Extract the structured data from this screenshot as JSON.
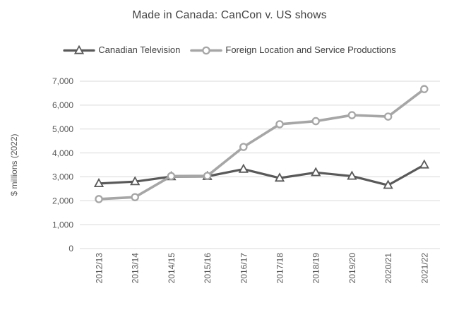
{
  "title": "Made in Canada: CanCon v. US shows",
  "legend": {
    "position": "top",
    "items": [
      {
        "label": "Canadian Television",
        "marker": "triangle",
        "color": "#595959"
      },
      {
        "label": "Foreign Location and Service Productions",
        "marker": "circle",
        "color": "#A6A6A6"
      }
    ]
  },
  "chart_data": {
    "type": "line",
    "title": "Made in Canada: CanCon v. US shows",
    "categories": [
      "2012/13",
      "2013/14",
      "2014/15",
      "2015/16",
      "2016/17",
      "2017/18",
      "2018/19",
      "2019/20",
      "2020/21",
      "2021/22"
    ],
    "series": [
      {
        "name": "Canadian Television",
        "marker": "triangle",
        "color": "#595959",
        "values": [
          2720,
          2800,
          3010,
          3020,
          3320,
          2950,
          3180,
          3030,
          2650,
          3500
        ]
      },
      {
        "name": "Foreign Location and Service Productions",
        "marker": "circle",
        "color": "#A6A6A6",
        "values": [
          2070,
          2150,
          3030,
          3040,
          4250,
          5200,
          5330,
          5580,
          5520,
          6670
        ]
      }
    ],
    "xlabel": "",
    "ylabel": "$ millions (2022)",
    "ylim": [
      0,
      7000
    ],
    "ytick_step": 1000,
    "ytick_labels": [
      "0",
      "1,000",
      "2,000",
      "3,000",
      "4,000",
      "5,000",
      "6,000",
      "7,000"
    ],
    "grid": true,
    "x_label_rotation_deg": 90,
    "colors": {
      "gridline": "#D9D9D9",
      "tick_text": "#595959",
      "title_text": "#404040",
      "marker_fill": "#FFFFFF"
    }
  }
}
